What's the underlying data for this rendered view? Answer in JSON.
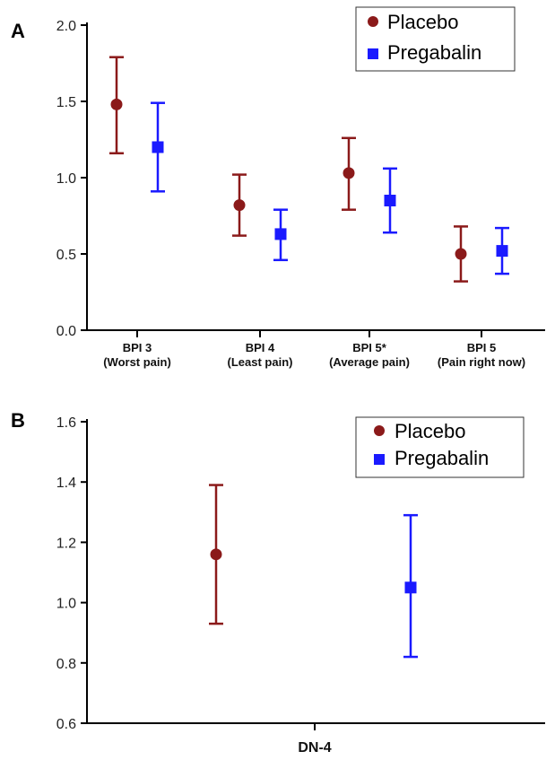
{
  "chart_data": [
    {
      "panel_label": "A",
      "type": "scatter",
      "mark": "mean-with-error-bars",
      "categories": [
        [
          "BPI 3",
          "(Worst pain)"
        ],
        [
          "BPI 4",
          "(Least pain)"
        ],
        [
          "BPI 5*",
          "(Average pain)"
        ],
        [
          "BPI 5",
          "(Pain right now)"
        ]
      ],
      "series": [
        {
          "name": "Placebo",
          "color": "#8b1a1a",
          "marker": "circle",
          "values": [
            1.48,
            0.82,
            1.03,
            0.5
          ],
          "lower": [
            1.16,
            0.62,
            0.79,
            0.32
          ],
          "upper": [
            1.79,
            1.02,
            1.26,
            0.68
          ]
        },
        {
          "name": "Pregabalin",
          "color": "#1a1aff",
          "marker": "square",
          "values": [
            1.2,
            0.63,
            0.85,
            0.52
          ],
          "lower": [
            0.91,
            0.46,
            0.64,
            0.37
          ],
          "upper": [
            1.49,
            0.79,
            1.06,
            0.67
          ]
        }
      ],
      "ylim": [
        0,
        2.0
      ],
      "yticks": [
        "0.0",
        "0.5",
        "1.0",
        "1.5",
        "2.0"
      ],
      "legend": "top-right",
      "grid": false
    },
    {
      "panel_label": "B",
      "type": "scatter",
      "mark": "mean-with-error-bars",
      "categories": [
        [
          "DN-4"
        ]
      ],
      "series": [
        {
          "name": "Placebo",
          "color": "#8b1a1a",
          "marker": "circle",
          "values": [
            1.16
          ],
          "lower": [
            0.93
          ],
          "upper": [
            1.39
          ]
        },
        {
          "name": "Pregabalin",
          "color": "#1a1aff",
          "marker": "square",
          "values": [
            1.05
          ],
          "lower": [
            0.82
          ],
          "upper": [
            1.29
          ]
        }
      ],
      "ylim": [
        0.6,
        1.6
      ],
      "yticks": [
        "0.6",
        "0.8",
        "1.0",
        "1.2",
        "1.4",
        "1.6"
      ],
      "legend": "top-right",
      "grid": false
    }
  ]
}
